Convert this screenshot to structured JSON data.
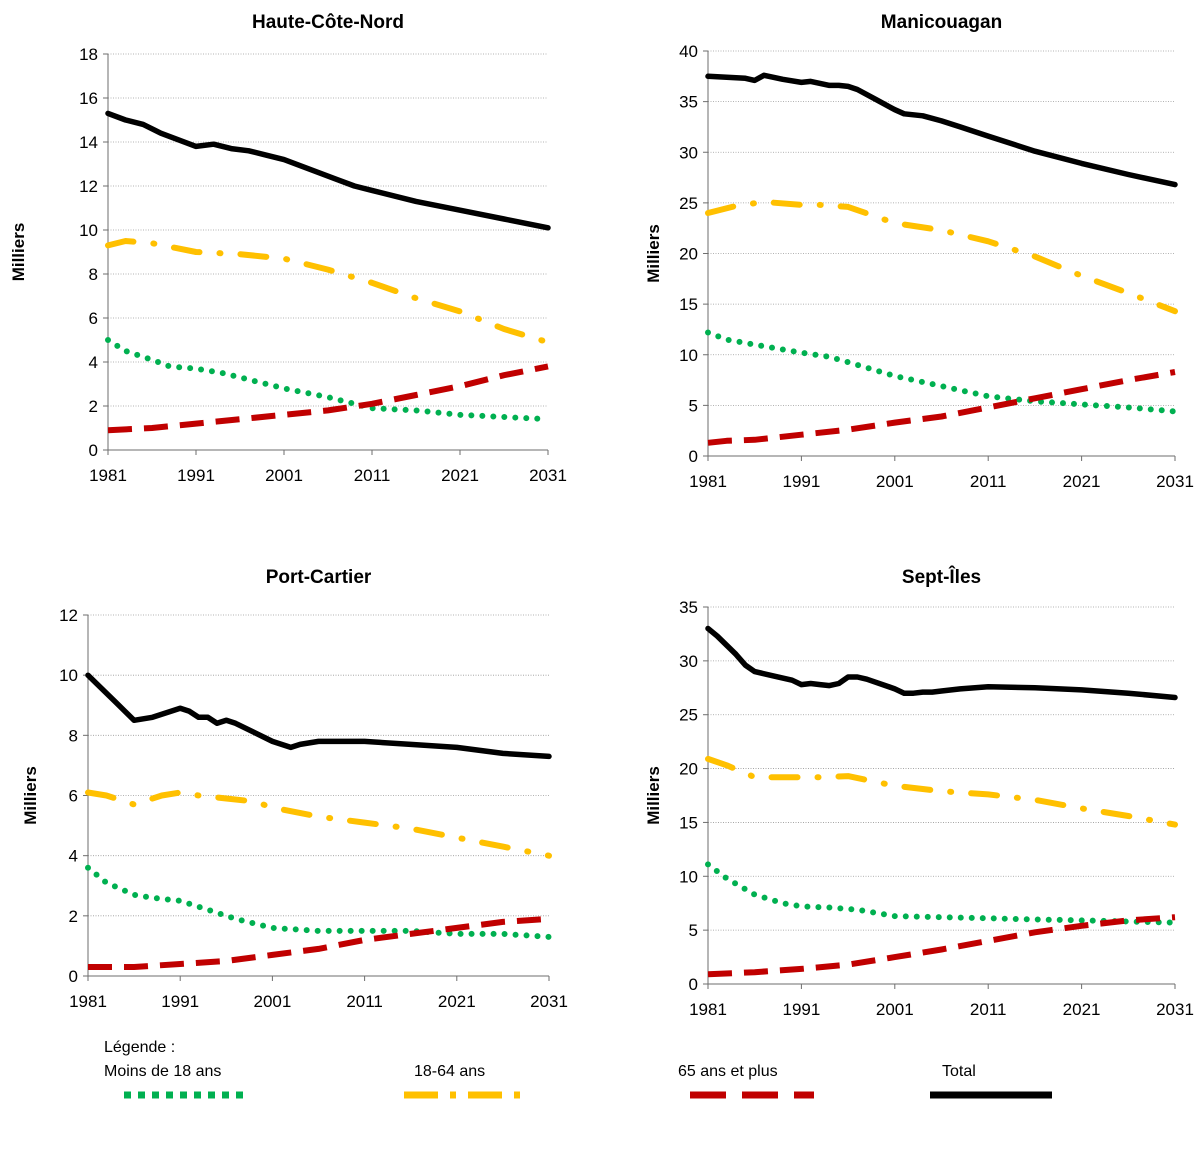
{
  "legend": {
    "heading": "Légende :",
    "items": [
      {
        "label": "Moins de 18 ans",
        "color": "#00b050",
        "style": "dotted"
      },
      {
        "label": "18-64 ans",
        "color": "#ffc000",
        "style": "dash-dot"
      },
      {
        "label": "65 ans et plus",
        "color": "#c00000",
        "style": "dashed"
      },
      {
        "label": "Total",
        "color": "#000000",
        "style": "solid"
      }
    ]
  },
  "chart_data": [
    {
      "type": "line",
      "title": "Haute-Côte-Nord",
      "xlabel": "",
      "ylabel": "Milliers",
      "x_ticks": [
        "1981",
        "1991",
        "2001",
        "2011",
        "2021",
        "2031"
      ],
      "y_ticks": [
        "0",
        "2",
        "4",
        "6",
        "8",
        "10",
        "12",
        "14",
        "16",
        "18"
      ],
      "xlim": [
        1981,
        2031
      ],
      "ylim": [
        0,
        18
      ],
      "grid": true,
      "series": [
        {
          "name": "Total",
          "color": "#000000",
          "style": "solid",
          "x": [
            1981,
            1983,
            1985,
            1987,
            1989,
            1991,
            1993,
            1995,
            1997,
            1999,
            2001,
            2003,
            2005,
            2007,
            2009,
            2011,
            2016,
            2021,
            2026,
            2031
          ],
          "y": [
            15.3,
            15.0,
            14.8,
            14.4,
            14.1,
            13.8,
            13.9,
            13.7,
            13.6,
            13.4,
            13.2,
            12.9,
            12.6,
            12.3,
            12.0,
            11.8,
            11.3,
            10.9,
            10.5,
            10.1
          ]
        },
        {
          "name": "18-64 ans",
          "color": "#ffc000",
          "style": "dash-dot",
          "x": [
            1981,
            1983,
            1986,
            1991,
            1996,
            2001,
            2006,
            2011,
            2016,
            2021,
            2026,
            2031
          ],
          "y": [
            9.3,
            9.5,
            9.4,
            9.0,
            8.9,
            8.7,
            8.2,
            7.6,
            6.9,
            6.3,
            5.5,
            4.9
          ]
        },
        {
          "name": "Moins de 18 ans",
          "color": "#00b050",
          "style": "dotted",
          "x": [
            1981,
            1983,
            1986,
            1988,
            1991,
            1994,
            1997,
            2001,
            2006,
            2011,
            2016,
            2021,
            2026,
            2031
          ],
          "y": [
            5.0,
            4.5,
            4.1,
            3.8,
            3.7,
            3.5,
            3.2,
            2.8,
            2.4,
            1.9,
            1.8,
            1.6,
            1.5,
            1.4
          ]
        },
        {
          "name": "65 ans et plus",
          "color": "#c00000",
          "style": "dashed",
          "x": [
            1981,
            1986,
            1991,
            1996,
            2001,
            2006,
            2011,
            2016,
            2021,
            2026,
            2031
          ],
          "y": [
            0.9,
            1.0,
            1.2,
            1.4,
            1.6,
            1.8,
            2.1,
            2.5,
            2.9,
            3.4,
            3.8
          ]
        }
      ]
    },
    {
      "type": "line",
      "title": "Manicouagan",
      "xlabel": "",
      "ylabel": "Milliers",
      "x_ticks": [
        "1981",
        "1991",
        "2001",
        "2011",
        "2021",
        "2031"
      ],
      "y_ticks": [
        "0",
        "5",
        "10",
        "15",
        "20",
        "25",
        "30",
        "35",
        "40"
      ],
      "xlim": [
        1981,
        2031
      ],
      "ylim": [
        0,
        40
      ],
      "grid": true,
      "series": [
        {
          "name": "Total",
          "color": "#000000",
          "style": "solid",
          "x": [
            1981,
            1983,
            1985,
            1986,
            1987,
            1988,
            1989,
            1991,
            1992,
            1993,
            1994,
            1995,
            1996,
            1997,
            1999,
            2001,
            2002,
            2004,
            2006,
            2008,
            2011,
            2016,
            2021,
            2026,
            2031
          ],
          "y": [
            37.5,
            37.4,
            37.3,
            37.1,
            37.6,
            37.4,
            37.2,
            36.9,
            37.0,
            36.8,
            36.6,
            36.6,
            36.5,
            36.2,
            35.2,
            34.2,
            33.8,
            33.6,
            33.1,
            32.5,
            31.6,
            30.1,
            28.9,
            27.8,
            26.8
          ]
        },
        {
          "name": "18-64 ans",
          "color": "#ffc000",
          "style": "dash-dot",
          "x": [
            1981,
            1984,
            1987,
            1991,
            1993,
            1996,
            2001,
            2006,
            2011,
            2016,
            2021,
            2026,
            2031
          ],
          "y": [
            24.0,
            24.7,
            25.1,
            24.8,
            24.8,
            24.6,
            23.0,
            22.3,
            21.2,
            19.7,
            17.8,
            16.1,
            14.3
          ]
        },
        {
          "name": "Moins de 18 ans",
          "color": "#00b050",
          "style": "dotted",
          "x": [
            1981,
            1983,
            1986,
            1991,
            1994,
            1997,
            2001,
            2006,
            2011,
            2016,
            2021,
            2026,
            2031
          ],
          "y": [
            12.2,
            11.5,
            11.0,
            10.2,
            9.8,
            9.0,
            7.9,
            6.9,
            5.9,
            5.4,
            5.1,
            4.8,
            4.4
          ]
        },
        {
          "name": "65 ans et plus",
          "color": "#c00000",
          "style": "dashed",
          "x": [
            1981,
            1983,
            1986,
            1991,
            1996,
            2001,
            2006,
            2011,
            2016,
            2021,
            2026,
            2031
          ],
          "y": [
            1.3,
            1.5,
            1.6,
            2.1,
            2.6,
            3.3,
            3.9,
            4.8,
            5.7,
            6.6,
            7.5,
            8.3
          ]
        }
      ]
    },
    {
      "type": "line",
      "title": "Port-Cartier",
      "xlabel": "",
      "ylabel": "Milliers",
      "x_ticks": [
        "1981",
        "1991",
        "2001",
        "2011",
        "2021",
        "2031"
      ],
      "y_ticks": [
        "0",
        "2",
        "4",
        "6",
        "8",
        "10",
        "12"
      ],
      "xlim": [
        1981,
        2031
      ],
      "ylim": [
        0,
        12
      ],
      "grid": true,
      "series": [
        {
          "name": "Total",
          "color": "#000000",
          "style": "solid",
          "x": [
            1981,
            1982,
            1984,
            1986,
            1988,
            1990,
            1991,
            1992,
            1993,
            1994,
            1995,
            1996,
            1997,
            1999,
            2001,
            2003,
            2004,
            2006,
            2008,
            2011,
            2016,
            2021,
            2026,
            2031
          ],
          "y": [
            10.0,
            9.7,
            9.1,
            8.5,
            8.6,
            8.8,
            8.9,
            8.8,
            8.6,
            8.6,
            8.4,
            8.5,
            8.4,
            8.1,
            7.8,
            7.6,
            7.7,
            7.8,
            7.8,
            7.8,
            7.7,
            7.6,
            7.4,
            7.3
          ]
        },
        {
          "name": "18-64 ans",
          "color": "#ffc000",
          "style": "dash-dot",
          "x": [
            1981,
            1983,
            1986,
            1989,
            1991,
            1993,
            1996,
            1999,
            2001,
            2006,
            2011,
            2016,
            2021,
            2026,
            2031
          ],
          "y": [
            6.1,
            6.0,
            5.7,
            6.0,
            6.1,
            6.0,
            5.9,
            5.8,
            5.6,
            5.3,
            5.1,
            4.9,
            4.6,
            4.3,
            4.0
          ]
        },
        {
          "name": "Moins de 18 ans",
          "color": "#00b050",
          "style": "dotted",
          "x": [
            1981,
            1983,
            1986,
            1988,
            1991,
            1994,
            1997,
            2001,
            2006,
            2011,
            2016,
            2021,
            2026,
            2031
          ],
          "y": [
            3.6,
            3.1,
            2.7,
            2.6,
            2.5,
            2.2,
            1.9,
            1.6,
            1.5,
            1.5,
            1.5,
            1.4,
            1.4,
            1.3
          ]
        },
        {
          "name": "65 ans et plus",
          "color": "#c00000",
          "style": "dashed",
          "x": [
            1981,
            1986,
            1991,
            1996,
            2001,
            2006,
            2011,
            2016,
            2021,
            2026,
            2031
          ],
          "y": [
            0.3,
            0.3,
            0.4,
            0.5,
            0.7,
            0.9,
            1.2,
            1.4,
            1.6,
            1.8,
            1.9
          ]
        }
      ]
    },
    {
      "type": "line",
      "title": "Sept-Îles",
      "xlabel": "",
      "ylabel": "Milliers",
      "x_ticks": [
        "1981",
        "1991",
        "2001",
        "2011",
        "2021",
        "2031"
      ],
      "y_ticks": [
        "0",
        "5",
        "10",
        "15",
        "20",
        "25",
        "30",
        "35"
      ],
      "xlim": [
        1981,
        2031
      ],
      "ylim": [
        0,
        35
      ],
      "grid": true,
      "series": [
        {
          "name": "Total",
          "color": "#000000",
          "style": "solid",
          "x": [
            1981,
            1982,
            1984,
            1985,
            1986,
            1988,
            1990,
            1991,
            1992,
            1993,
            1994,
            1995,
            1996,
            1997,
            1998,
            2000,
            2001,
            2002,
            2003,
            2004,
            2005,
            2006,
            2008,
            2011,
            2016,
            2021,
            2026,
            2031
          ],
          "y": [
            33.0,
            32.3,
            30.6,
            29.6,
            29.0,
            28.6,
            28.2,
            27.8,
            27.9,
            27.8,
            27.7,
            27.9,
            28.5,
            28.5,
            28.3,
            27.7,
            27.4,
            27.0,
            27.0,
            27.1,
            27.1,
            27.2,
            27.4,
            27.6,
            27.5,
            27.3,
            27.0,
            26.6
          ]
        },
        {
          "name": "18-64 ans",
          "color": "#ffc000",
          "style": "dash-dot",
          "x": [
            1981,
            1983,
            1986,
            1991,
            1993,
            1996,
            2001,
            2006,
            2011,
            2016,
            2021,
            2026,
            2031
          ],
          "y": [
            20.9,
            20.3,
            19.2,
            19.2,
            19.2,
            19.3,
            18.4,
            17.9,
            17.6,
            17.1,
            16.3,
            15.6,
            14.8
          ]
        },
        {
          "name": "Moins de 18 ans",
          "color": "#00b050",
          "style": "dotted",
          "x": [
            1981,
            1983,
            1986,
            1989,
            1991,
            1994,
            1997,
            2001,
            2006,
            2011,
            2016,
            2021,
            2026,
            2031
          ],
          "y": [
            11.1,
            9.8,
            8.3,
            7.5,
            7.2,
            7.1,
            6.9,
            6.3,
            6.2,
            6.1,
            6.0,
            5.9,
            5.8,
            5.7
          ]
        },
        {
          "name": "65 ans et plus",
          "color": "#c00000",
          "style": "dashed",
          "x": [
            1981,
            1986,
            1991,
            1996,
            2001,
            2006,
            2011,
            2016,
            2021,
            2026,
            2031
          ],
          "y": [
            0.9,
            1.1,
            1.4,
            1.8,
            2.5,
            3.2,
            4.0,
            4.8,
            5.4,
            5.9,
            6.2
          ]
        }
      ]
    }
  ]
}
